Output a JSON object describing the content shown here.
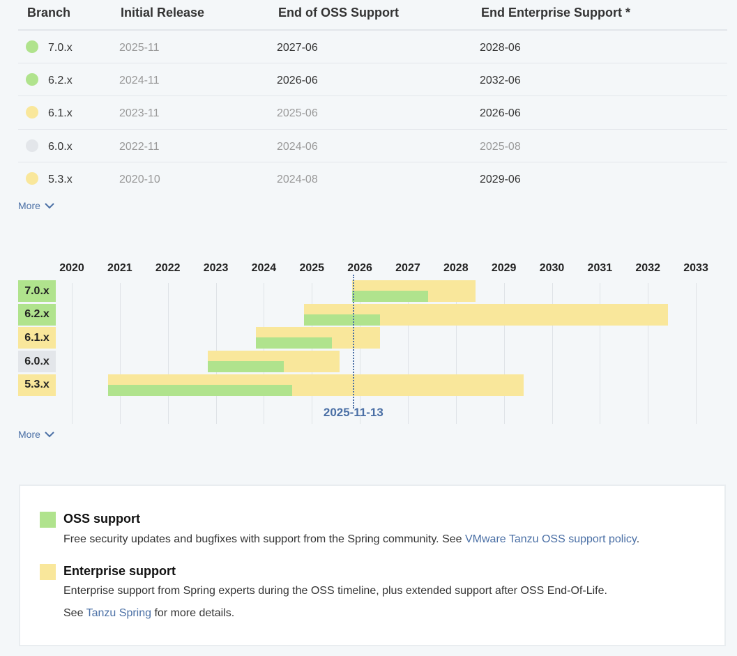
{
  "colors": {
    "oss": "#b0e38d",
    "enterprise": "#f9e79b",
    "ended": "#e3e6ea",
    "accent": "#4a6fa5"
  },
  "table": {
    "headers": [
      "Branch",
      "Initial Release",
      "End of OSS Support",
      "End Enterprise Support *"
    ],
    "rows": [
      {
        "branch": "7.0.x",
        "status": "oss",
        "initial": "2025-11",
        "oss_end": "2027-06",
        "ent_end": "2028-06",
        "oss_muted": false,
        "ent_muted": false
      },
      {
        "branch": "6.2.x",
        "status": "oss",
        "initial": "2024-11",
        "oss_end": "2026-06",
        "ent_end": "2032-06",
        "oss_muted": false,
        "ent_muted": false
      },
      {
        "branch": "6.1.x",
        "status": "enterprise",
        "initial": "2023-11",
        "oss_end": "2025-06",
        "ent_end": "2026-06",
        "oss_muted": true,
        "ent_muted": false
      },
      {
        "branch": "6.0.x",
        "status": "ended",
        "initial": "2022-11",
        "oss_end": "2024-06",
        "ent_end": "2025-08",
        "oss_muted": true,
        "ent_muted": true
      },
      {
        "branch": "5.3.x",
        "status": "enterprise",
        "initial": "2020-10",
        "oss_end": "2024-08",
        "ent_end": "2029-06",
        "oss_muted": true,
        "ent_muted": false
      }
    ],
    "more_label": "More"
  },
  "timeline": {
    "years": [
      "2020",
      "2021",
      "2022",
      "2023",
      "2024",
      "2025",
      "2026",
      "2027",
      "2028",
      "2029",
      "2030",
      "2031",
      "2032",
      "2033"
    ],
    "today": "2025-11-13",
    "more_label": "More"
  },
  "legend": {
    "oss_title": "OSS support",
    "oss_text": "Free security updates and bugfixes with support from the Spring community. See ",
    "oss_link": "VMware Tanzu OSS support policy",
    "oss_suffix": ".",
    "ent_title": "Enterprise support",
    "ent_text": "Enterprise support from Spring experts during the OSS timeline, plus extended support after OSS End-Of-Life.",
    "ent_see": "See ",
    "ent_link": "Tanzu Spring",
    "ent_suffix": " for more details."
  }
}
